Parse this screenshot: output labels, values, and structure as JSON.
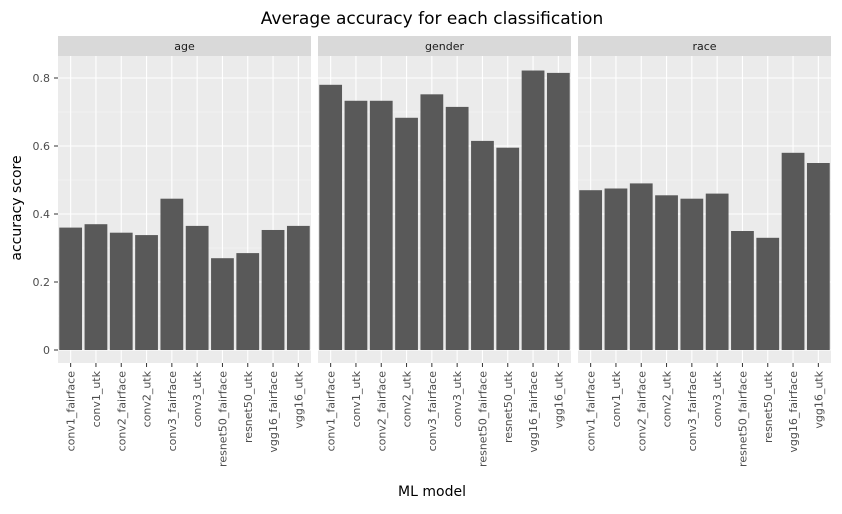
{
  "chart_data": {
    "type": "bar",
    "title": "Average accuracy for each classification",
    "xlabel": "ML model",
    "ylabel": "accuracy score",
    "ylim": [
      0,
      0.9
    ],
    "yticks": [
      "0",
      "0.2",
      "0.4",
      "0.6",
      "0.8"
    ],
    "categories": [
      "conv1_fairface",
      "conv1_utk",
      "conv2_fairface",
      "conv2_utk",
      "conv3_fairface",
      "conv3_utk",
      "resnet50_fairface",
      "resnet50_utk",
      "vgg16_fairface",
      "vgg16_utk"
    ],
    "panels": [
      {
        "name": "age",
        "values": [
          0.36,
          0.37,
          0.345,
          0.338,
          0.445,
          0.365,
          0.27,
          0.285,
          0.353,
          0.365
        ]
      },
      {
        "name": "gender",
        "values": [
          0.78,
          0.733,
          0.733,
          0.683,
          0.752,
          0.715,
          0.615,
          0.595,
          0.822,
          0.815
        ]
      },
      {
        "name": "race",
        "values": [
          0.47,
          0.475,
          0.49,
          0.455,
          0.445,
          0.46,
          0.35,
          0.33,
          0.58,
          0.55
        ]
      }
    ],
    "bar_color": "#595959",
    "panel_background": "#ebebeb",
    "strip_background": "#d9d9d9",
    "grid": true,
    "legend": "none"
  }
}
